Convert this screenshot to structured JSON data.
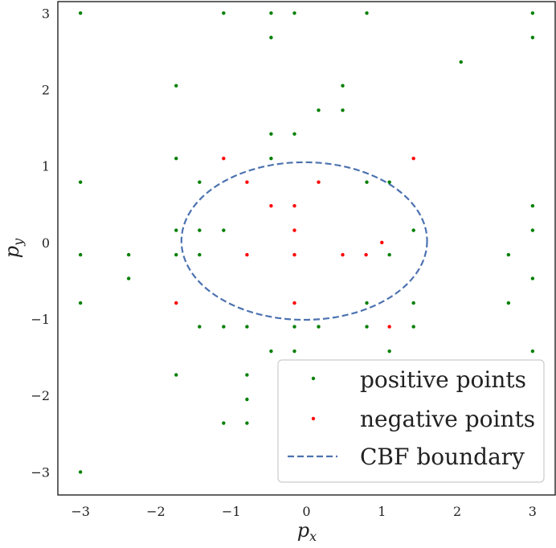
{
  "chart_data": {
    "type": "scatter",
    "xlim": [
      -3.3,
      3.3
    ],
    "ylim": [
      -3.3,
      3.15
    ],
    "xticks": [
      -3,
      -2,
      -1,
      0,
      1,
      2,
      3
    ],
    "yticks": [
      -3,
      -2,
      -1,
      0,
      1,
      2,
      3
    ],
    "x_tick_labels": [
      "−3",
      "−2",
      "−1",
      "0",
      "1",
      "2",
      "3"
    ],
    "y_tick_labels": [
      "−3",
      "−2",
      "−1",
      "0",
      "1",
      "2",
      "3"
    ],
    "xlabel": {
      "main": "p",
      "sub": "x"
    },
    "ylabel": {
      "main": "p",
      "sub": "y"
    },
    "grid": false,
    "legend_position": "lower-right",
    "series": [
      {
        "name": "positive points",
        "color": "#008000",
        "marker": "dot",
        "points": [
          [
            -3.0,
            3.0
          ],
          [
            -1.1,
            3.0
          ],
          [
            -0.47,
            3.0
          ],
          [
            -0.16,
            3.0
          ],
          [
            0.8,
            3.0
          ],
          [
            3.0,
            3.0
          ],
          [
            -0.47,
            2.68
          ],
          [
            3.0,
            2.68
          ],
          [
            2.05,
            2.36
          ],
          [
            -1.73,
            2.05
          ],
          [
            0.48,
            2.05
          ],
          [
            0.16,
            1.73
          ],
          [
            0.48,
            1.73
          ],
          [
            -0.47,
            1.42
          ],
          [
            -0.16,
            1.42
          ],
          [
            -1.73,
            1.1
          ],
          [
            -0.47,
            1.1
          ],
          [
            -3.0,
            0.79
          ],
          [
            -1.42,
            0.79
          ],
          [
            0.8,
            0.79
          ],
          [
            1.1,
            0.79
          ],
          [
            3.0,
            0.48
          ],
          [
            -1.73,
            0.16
          ],
          [
            -1.42,
            0.16
          ],
          [
            -1.1,
            0.16
          ],
          [
            1.42,
            0.16
          ],
          [
            3.0,
            0.16
          ],
          [
            -3.0,
            -0.16
          ],
          [
            -2.36,
            -0.16
          ],
          [
            -1.73,
            -0.16
          ],
          [
            -1.42,
            -0.16
          ],
          [
            1.1,
            -0.16
          ],
          [
            2.68,
            -0.16
          ],
          [
            -2.36,
            -0.47
          ],
          [
            3.0,
            -0.47
          ],
          [
            -3.0,
            -0.79
          ],
          [
            0.8,
            -0.79
          ],
          [
            1.42,
            -0.79
          ],
          [
            2.68,
            -0.79
          ],
          [
            -1.42,
            -1.1
          ],
          [
            -1.1,
            -1.1
          ],
          [
            -0.79,
            -1.1
          ],
          [
            -0.16,
            -1.1
          ],
          [
            0.16,
            -1.1
          ],
          [
            0.8,
            -1.1
          ],
          [
            1.42,
            -1.1
          ],
          [
            -0.47,
            -1.42
          ],
          [
            -0.16,
            -1.42
          ],
          [
            1.1,
            -1.42
          ],
          [
            3.0,
            -1.42
          ],
          [
            -1.73,
            -1.73
          ],
          [
            -0.79,
            -1.73
          ],
          [
            -0.79,
            -2.05
          ],
          [
            -1.1,
            -2.36
          ],
          [
            -0.79,
            -2.36
          ],
          [
            -3.0,
            -3.0
          ]
        ]
      },
      {
        "name": "negative points",
        "color": "#ff0000",
        "marker": "dot",
        "points": [
          [
            -1.1,
            1.1
          ],
          [
            1.42,
            1.1
          ],
          [
            -0.79,
            0.79
          ],
          [
            0.16,
            0.79
          ],
          [
            -0.47,
            0.48
          ],
          [
            -0.16,
            0.48
          ],
          [
            -0.16,
            0.16
          ],
          [
            1.0,
            0.0
          ],
          [
            -0.79,
            -0.16
          ],
          [
            -0.16,
            -0.16
          ],
          [
            0.48,
            -0.16
          ],
          [
            0.79,
            -0.16
          ],
          [
            -1.73,
            -0.79
          ],
          [
            -0.16,
            -0.79
          ],
          [
            1.1,
            -1.1
          ]
        ]
      }
    ],
    "boundary": {
      "name": "CBF boundary",
      "color": "#4c72b0",
      "style": "dashed",
      "center": [
        -0.03,
        0.02
      ],
      "radii": [
        1.63,
        1.03
      ]
    }
  },
  "legend": {
    "items": [
      {
        "label": "positive points",
        "color": "#008000",
        "kind": "dot"
      },
      {
        "label": "negative points",
        "color": "#ff0000",
        "kind": "dot"
      },
      {
        "label": "CBF boundary",
        "color": "#4c72b0",
        "kind": "dashed-line"
      }
    ]
  }
}
